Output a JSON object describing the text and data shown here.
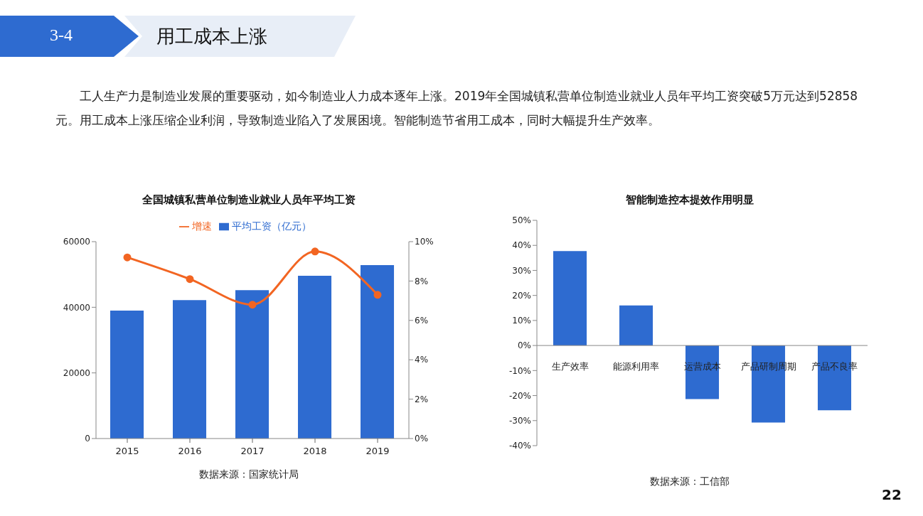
{
  "chart_data": [
    {
      "type": "other",
      "title": "用工成本上涨",
      "annotations": [
        "3-4",
        "工人生产力是制造业发展的重要驱动，如今制造业人力成本逐年上涨。2019年全国城镇私营单位制造业就业人员年平均工资突破5万元达到52858元。用工成本上涨压缩企业利润，导致制造业陷入了发展困境。智能制造节省用工成本，同时大幅提升生产效率。",
        "22"
      ]
    },
    {
      "type": "bar",
      "title": "全国城镇私营单位制造业就业人员年平均工资",
      "categories": [
        "2015",
        "2016",
        "2017",
        "2018",
        "2019"
      ],
      "series": [
        {
          "name": "平均工资（亿元）",
          "color": "#2e6bd0",
          "values": [
            39000,
            42200,
            45200,
            49600,
            52858
          ]
        },
        {
          "name": "增速",
          "type": "line",
          "axis": "y2",
          "color": "#f26522",
          "values": [
            9.2,
            8.1,
            6.8,
            9.5,
            7.3
          ]
        }
      ],
      "ylim": [
        0,
        60000
      ],
      "yticks": [
        0,
        20000,
        40000,
        60000
      ],
      "y2lim": [
        0,
        10
      ],
      "y2ticks": [
        {
          "value": 0,
          "label": "0%"
        },
        {
          "value": 2,
          "label": "2%"
        },
        {
          "value": 4,
          "label": "4%"
        },
        {
          "value": 6,
          "label": "6%"
        },
        {
          "value": 8,
          "label": "8%"
        },
        {
          "value": 10,
          "label": "10%"
        }
      ],
      "legend": "top",
      "marker": "circle",
      "annotations": [
        "数据来源：国家统计局"
      ]
    },
    {
      "type": "bar",
      "title": "智能制造控本提效作用明显",
      "categories": [
        "生产效率",
        "能源利用率",
        "运营成本",
        "产品研制周期",
        "产品不良率"
      ],
      "values": [
        37.7,
        16.0,
        -21.4,
        -30.8,
        -25.9
      ],
      "color": "#2e6bd0",
      "ylim": [
        -40,
        50
      ],
      "yticks": [
        {
          "value": -40,
          "label": "-40%"
        },
        {
          "value": -30,
          "label": "-30%"
        },
        {
          "value": -20,
          "label": "-20%"
        },
        {
          "value": -10,
          "label": "-10%"
        },
        {
          "value": 0,
          "label": "0%"
        },
        {
          "value": 10,
          "label": "10%"
        },
        {
          "value": 20,
          "label": "20%"
        },
        {
          "value": 30,
          "label": "30%"
        },
        {
          "value": 40,
          "label": "40%"
        },
        {
          "value": 50,
          "label": "50%"
        }
      ],
      "annotations": [
        "数据来源：工信部"
      ]
    }
  ]
}
